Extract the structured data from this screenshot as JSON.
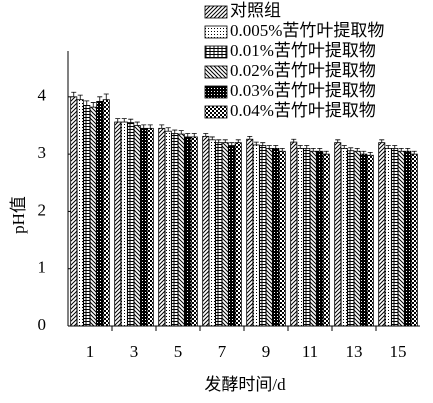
{
  "chart_data": {
    "type": "bar",
    "x_label": "发酵时间/d",
    "y_label": "pH值",
    "categories": [
      "1",
      "3",
      "5",
      "7",
      "9",
      "11",
      "13",
      "15"
    ],
    "ylim": [
      0,
      4.8
    ],
    "yticks": [
      0,
      1,
      2,
      3,
      4
    ],
    "series": [
      {
        "name": "对照组",
        "color": "#000000",
        "pattern": "diagonal-up",
        "values": [
          4.0,
          3.56,
          3.45,
          3.31,
          3.26,
          3.21,
          3.2,
          3.2
        ],
        "errors": [
          0.08,
          0.06,
          0.06,
          0.05,
          0.05,
          0.05,
          0.05,
          0.05
        ]
      },
      {
        "name": "0.005%苦竹叶提取物",
        "color": "#000000",
        "pattern": "dots",
        "values": [
          3.95,
          3.56,
          3.4,
          3.25,
          3.16,
          3.1,
          3.1,
          3.1
        ],
        "errors": [
          0.08,
          0.06,
          0.06,
          0.05,
          0.05,
          0.05,
          0.05,
          0.05
        ]
      },
      {
        "name": "0.01%苦竹叶提取物",
        "color": "#000000",
        "pattern": "grid",
        "values": [
          3.85,
          3.55,
          3.36,
          3.2,
          3.15,
          3.1,
          3.06,
          3.1
        ],
        "errors": [
          0.08,
          0.06,
          0.06,
          0.05,
          0.05,
          0.05,
          0.05,
          0.05
        ]
      },
      {
        "name": "0.02%苦竹叶提取物",
        "color": "#000000",
        "pattern": "diagonal-down",
        "values": [
          3.82,
          3.5,
          3.35,
          3.2,
          3.1,
          3.05,
          3.05,
          3.05
        ],
        "errors": [
          0.08,
          0.06,
          0.06,
          0.05,
          0.05,
          0.05,
          0.05,
          0.05
        ]
      },
      {
        "name": "0.03%苦竹叶提取物",
        "color": "#000000",
        "pattern": "dense",
        "values": [
          3.92,
          3.45,
          3.3,
          3.15,
          3.1,
          3.05,
          3.0,
          3.05
        ],
        "errors": [
          0.08,
          0.06,
          0.06,
          0.05,
          0.05,
          0.05,
          0.05,
          0.05
        ]
      },
      {
        "name": "0.04%苦竹叶提取物",
        "color": "#000000",
        "pattern": "checker",
        "values": [
          3.95,
          3.45,
          3.3,
          3.2,
          3.05,
          3.0,
          2.98,
          3.0
        ],
        "errors": [
          0.1,
          0.06,
          0.06,
          0.05,
          0.05,
          0.05,
          0.05,
          0.05
        ]
      }
    ]
  }
}
